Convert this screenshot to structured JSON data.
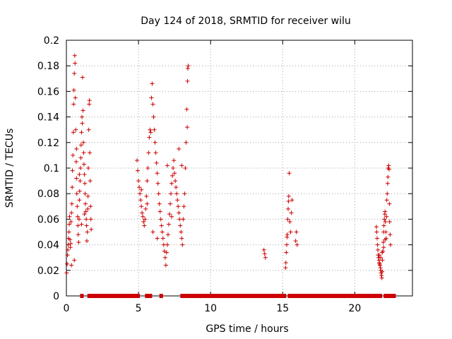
{
  "chart_data": {
    "type": "scatter",
    "title": "Day 124 of 2018, SRMTID for receiver wilu",
    "xlabel": "GPS time / hours",
    "ylabel": "SRMTID / TECUs",
    "xlim": [
      0,
      24
    ],
    "ylim": [
      0,
      0.2
    ],
    "grid": true,
    "marker": "+",
    "color": "#cc0000",
    "x_ticks": [
      "0",
      "5",
      "10",
      "15",
      "20"
    ],
    "x_tick_values": [
      0,
      5,
      10,
      15,
      20
    ],
    "y_ticks": [
      "0",
      "0.02",
      "0.04",
      "0.06",
      "0.08",
      "0.1",
      "0.12",
      "0.14",
      "0.16",
      "0.18",
      "0.2"
    ],
    "y_tick_values": [
      0,
      0.02,
      0.04,
      0.06,
      0.08,
      0.1,
      0.12,
      0.14,
      0.16,
      0.18,
      0.2
    ],
    "series": [
      {
        "name": "SRMTID",
        "points": [
          [
            0.02,
            0.018
          ],
          [
            0.05,
            0.025
          ],
          [
            0.08,
            0.032
          ],
          [
            0.1,
            0.036
          ],
          [
            0.12,
            0.04
          ],
          [
            0.15,
            0.045
          ],
          [
            0.18,
            0.05
          ],
          [
            0.2,
            0.056
          ],
          [
            0.22,
            0.062
          ],
          [
            0.25,
            0.044
          ],
          [
            0.28,
            0.038
          ],
          [
            0.3,
            0.041
          ],
          [
            0.32,
            0.058
          ],
          [
            0.35,
            0.065
          ],
          [
            0.38,
            0.072
          ],
          [
            0.4,
            0.085
          ],
          [
            0.42,
            0.098
          ],
          [
            0.45,
            0.11
          ],
          [
            0.48,
            0.128
          ],
          [
            0.5,
            0.15
          ],
          [
            0.52,
            0.161
          ],
          [
            0.55,
            0.174
          ],
          [
            0.58,
            0.188
          ],
          [
            0.6,
            0.182
          ],
          [
            0.62,
            0.155
          ],
          [
            0.65,
            0.13
          ],
          [
            0.68,
            0.105
          ],
          [
            0.7,
            0.092
          ],
          [
            0.72,
            0.08
          ],
          [
            0.75,
            0.07
          ],
          [
            0.78,
            0.062
          ],
          [
            0.8,
            0.055
          ],
          [
            0.82,
            0.048
          ],
          [
            0.85,
            0.042
          ],
          [
            0.88,
            0.06
          ],
          [
            0.9,
            0.075
          ],
          [
            0.92,
            0.082
          ],
          [
            0.95,
            0.09
          ],
          [
            0.98,
            0.1
          ],
          [
            1.0,
            0.108
          ],
          [
            1.02,
            0.118
          ],
          [
            1.05,
            0.128
          ],
          [
            1.08,
            0.14
          ],
          [
            1.1,
            0.135
          ],
          [
            1.12,
            0.171
          ],
          [
            1.15,
            0.145
          ],
          [
            1.18,
            0.12
          ],
          [
            1.2,
            0.112
          ],
          [
            1.22,
            0.103
          ],
          [
            1.25,
            0.095
          ],
          [
            1.28,
            0.088
          ],
          [
            1.3,
            0.08
          ],
          [
            1.32,
            0.072
          ],
          [
            1.35,
            0.066
          ],
          [
            1.38,
            0.06
          ],
          [
            1.4,
            0.055
          ],
          [
            1.42,
            0.043
          ],
          [
            1.45,
            0.05
          ],
          [
            1.48,
            0.068
          ],
          [
            1.5,
            0.078
          ],
          [
            1.52,
            0.1
          ],
          [
            1.55,
            0.13
          ],
          [
            1.58,
            0.15
          ],
          [
            1.6,
            0.153
          ],
          [
            1.62,
            0.112
          ],
          [
            1.65,
            0.09
          ],
          [
            1.68,
            0.07
          ],
          [
            1.7,
            0.06
          ],
          [
            1.72,
            0.052
          ],
          [
            0.35,
            0.024
          ],
          [
            0.55,
            0.028
          ],
          [
            1.05,
            0.056
          ],
          [
            1.25,
            0.064
          ],
          [
            0.7,
            0.115
          ],
          [
            0.9,
            0.095
          ],
          [
            4.9,
            0.106
          ],
          [
            4.95,
            0.098
          ],
          [
            5.0,
            0.09
          ],
          [
            5.05,
            0.085
          ],
          [
            5.1,
            0.08
          ],
          [
            5.15,
            0.075
          ],
          [
            5.2,
            0.07
          ],
          [
            5.25,
            0.065
          ],
          [
            5.3,
            0.062
          ],
          [
            5.35,
            0.058
          ],
          [
            5.4,
            0.055
          ],
          [
            5.45,
            0.06
          ],
          [
            5.5,
            0.068
          ],
          [
            5.55,
            0.078
          ],
          [
            5.6,
            0.09
          ],
          [
            5.65,
            0.1
          ],
          [
            5.7,
            0.112
          ],
          [
            5.75,
            0.124
          ],
          [
            5.8,
            0.13
          ],
          [
            5.85,
            0.128
          ],
          [
            5.9,
            0.155
          ],
          [
            5.95,
            0.166
          ],
          [
            6.0,
            0.15
          ],
          [
            6.05,
            0.14
          ],
          [
            6.1,
            0.13
          ],
          [
            6.15,
            0.12
          ],
          [
            6.2,
            0.112
          ],
          [
            6.25,
            0.104
          ],
          [
            6.3,
            0.096
          ],
          [
            6.35,
            0.088
          ],
          [
            6.4,
            0.08
          ],
          [
            6.45,
            0.072
          ],
          [
            6.5,
            0.066
          ],
          [
            6.55,
            0.06
          ],
          [
            6.6,
            0.055
          ],
          [
            6.65,
            0.05
          ],
          [
            6.7,
            0.045
          ],
          [
            6.75,
            0.04
          ],
          [
            6.8,
            0.035
          ],
          [
            6.85,
            0.03
          ],
          [
            6.9,
            0.024
          ],
          [
            6.95,
            0.034
          ],
          [
            7.0,
            0.04
          ],
          [
            7.05,
            0.048
          ],
          [
            7.1,
            0.056
          ],
          [
            7.15,
            0.064
          ],
          [
            7.2,
            0.072
          ],
          [
            7.25,
            0.08
          ],
          [
            7.3,
            0.088
          ],
          [
            7.35,
            0.094
          ],
          [
            7.4,
            0.1
          ],
          [
            7.45,
            0.106
          ],
          [
            7.5,
            0.096
          ],
          [
            7.55,
            0.09
          ],
          [
            7.6,
            0.085
          ],
          [
            7.65,
            0.08
          ],
          [
            7.7,
            0.075
          ],
          [
            7.75,
            0.07
          ],
          [
            7.8,
            0.065
          ],
          [
            7.85,
            0.06
          ],
          [
            7.9,
            0.055
          ],
          [
            7.95,
            0.05
          ],
          [
            8.0,
            0.045
          ],
          [
            8.05,
            0.04
          ],
          [
            8.1,
            0.06
          ],
          [
            8.15,
            0.07
          ],
          [
            8.2,
            0.08
          ],
          [
            8.25,
            0.1
          ],
          [
            8.3,
            0.12
          ],
          [
            8.35,
            0.146
          ],
          [
            8.38,
            0.132
          ],
          [
            8.4,
            0.168
          ],
          [
            8.42,
            0.178
          ],
          [
            8.45,
            0.18
          ],
          [
            5.2,
            0.083
          ],
          [
            5.6,
            0.072
          ],
          [
            6.0,
            0.05
          ],
          [
            6.3,
            0.045
          ],
          [
            7.0,
            0.102
          ],
          [
            7.3,
            0.062
          ],
          [
            7.8,
            0.115
          ],
          [
            8.0,
            0.102
          ],
          [
            13.7,
            0.036
          ],
          [
            13.75,
            0.033
          ],
          [
            13.8,
            0.03
          ],
          [
            15.2,
            0.022
          ],
          [
            15.22,
            0.026
          ],
          [
            15.25,
            0.034
          ],
          [
            15.28,
            0.04
          ],
          [
            15.3,
            0.046
          ],
          [
            15.32,
            0.048
          ],
          [
            15.35,
            0.06
          ],
          [
            15.38,
            0.068
          ],
          [
            15.4,
            0.074
          ],
          [
            15.42,
            0.078
          ],
          [
            15.45,
            0.096
          ],
          [
            15.5,
            0.058
          ],
          [
            15.55,
            0.05
          ],
          [
            15.6,
            0.065
          ],
          [
            15.65,
            0.075
          ],
          [
            15.9,
            0.043
          ],
          [
            15.95,
            0.05
          ],
          [
            16.0,
            0.04
          ],
          [
            21.5,
            0.054
          ],
          [
            21.52,
            0.05
          ],
          [
            21.55,
            0.045
          ],
          [
            21.58,
            0.04
          ],
          [
            21.6,
            0.036
          ],
          [
            21.62,
            0.032
          ],
          [
            21.65,
            0.03
          ],
          [
            21.68,
            0.028
          ],
          [
            21.7,
            0.026
          ],
          [
            21.72,
            0.025
          ],
          [
            21.75,
            0.024
          ],
          [
            21.78,
            0.022
          ],
          [
            21.8,
            0.02
          ],
          [
            21.82,
            0.018
          ],
          [
            21.85,
            0.016
          ],
          [
            21.88,
            0.014
          ],
          [
            21.9,
            0.019
          ],
          [
            21.92,
            0.028
          ],
          [
            21.95,
            0.035
          ],
          [
            21.98,
            0.042
          ],
          [
            22.0,
            0.05
          ],
          [
            22.02,
            0.055
          ],
          [
            22.05,
            0.06
          ],
          [
            22.08,
            0.064
          ],
          [
            22.1,
            0.066
          ],
          [
            22.12,
            0.058
          ],
          [
            22.15,
            0.05
          ],
          [
            22.18,
            0.045
          ],
          [
            22.2,
            0.062
          ],
          [
            22.22,
            0.075
          ],
          [
            22.25,
            0.08
          ],
          [
            22.28,
            0.088
          ],
          [
            22.3,
            0.093
          ],
          [
            22.32,
            0.1
          ],
          [
            22.35,
            0.102
          ],
          [
            22.38,
            0.099
          ],
          [
            22.4,
            0.072
          ],
          [
            22.42,
            0.058
          ],
          [
            22.45,
            0.048
          ],
          [
            22.48,
            0.04
          ],
          [
            21.7,
            0.032
          ],
          [
            21.8,
            0.03
          ],
          [
            21.9,
            0.034
          ],
          [
            22.0,
            0.038
          ],
          [
            22.1,
            0.044
          ]
        ]
      }
    ],
    "zero_points": [
      [
        1.05,
        0
      ],
      [
        1.1,
        0
      ],
      [
        1.55,
        0
      ],
      [
        1.8,
        0
      ],
      [
        2.05,
        0
      ],
      [
        2.3,
        0
      ],
      [
        2.55,
        0
      ],
      [
        2.8,
        0
      ],
      [
        3.05,
        0
      ],
      [
        3.3,
        0
      ],
      [
        3.55,
        0
      ],
      [
        3.8,
        0
      ],
      [
        4.05,
        0
      ],
      [
        4.3,
        0
      ],
      [
        4.55,
        0
      ],
      [
        4.8,
        0
      ],
      [
        5.0,
        0
      ],
      [
        5.55,
        0
      ],
      [
        5.65,
        0
      ],
      [
        5.75,
        0
      ],
      [
        5.85,
        0
      ],
      [
        6.55,
        0
      ],
      [
        6.6,
        0
      ],
      [
        8.0,
        0
      ],
      [
        8.1,
        0
      ],
      [
        8.2,
        0
      ],
      [
        8.4,
        0
      ],
      [
        8.65,
        0
      ],
      [
        8.9,
        0
      ],
      [
        9.15,
        0
      ],
      [
        9.4,
        0
      ],
      [
        9.65,
        0
      ],
      [
        9.9,
        0
      ],
      [
        10.15,
        0
      ],
      [
        10.4,
        0
      ],
      [
        10.65,
        0
      ],
      [
        10.9,
        0
      ],
      [
        11.15,
        0
      ],
      [
        11.4,
        0
      ],
      [
        11.65,
        0
      ],
      [
        11.9,
        0
      ],
      [
        12.15,
        0
      ],
      [
        12.4,
        0
      ],
      [
        12.65,
        0
      ],
      [
        12.9,
        0
      ],
      [
        13.15,
        0
      ],
      [
        13.4,
        0
      ],
      [
        13.65,
        0
      ],
      [
        13.9,
        0
      ],
      [
        14.15,
        0
      ],
      [
        14.4,
        0
      ],
      [
        14.65,
        0
      ],
      [
        14.9,
        0
      ],
      [
        15.15,
        0
      ],
      [
        15.45,
        0
      ],
      [
        15.7,
        0
      ],
      [
        15.95,
        0
      ],
      [
        16.2,
        0
      ],
      [
        16.45,
        0
      ],
      [
        16.7,
        0
      ],
      [
        16.95,
        0
      ],
      [
        17.2,
        0
      ],
      [
        17.45,
        0
      ],
      [
        17.7,
        0
      ],
      [
        17.95,
        0
      ],
      [
        18.2,
        0
      ],
      [
        18.45,
        0
      ],
      [
        18.7,
        0
      ],
      [
        18.95,
        0
      ],
      [
        19.2,
        0
      ],
      [
        19.45,
        0
      ],
      [
        19.7,
        0
      ],
      [
        19.95,
        0
      ],
      [
        20.2,
        0
      ],
      [
        20.45,
        0
      ],
      [
        20.7,
        0
      ],
      [
        20.95,
        0
      ],
      [
        21.2,
        0
      ],
      [
        21.45,
        0
      ],
      [
        21.7,
        0
      ],
      [
        21.8,
        0
      ],
      [
        22.1,
        0
      ],
      [
        22.3,
        0
      ],
      [
        22.45,
        0
      ],
      [
        22.6,
        0
      ],
      [
        22.75,
        0
      ]
    ]
  }
}
